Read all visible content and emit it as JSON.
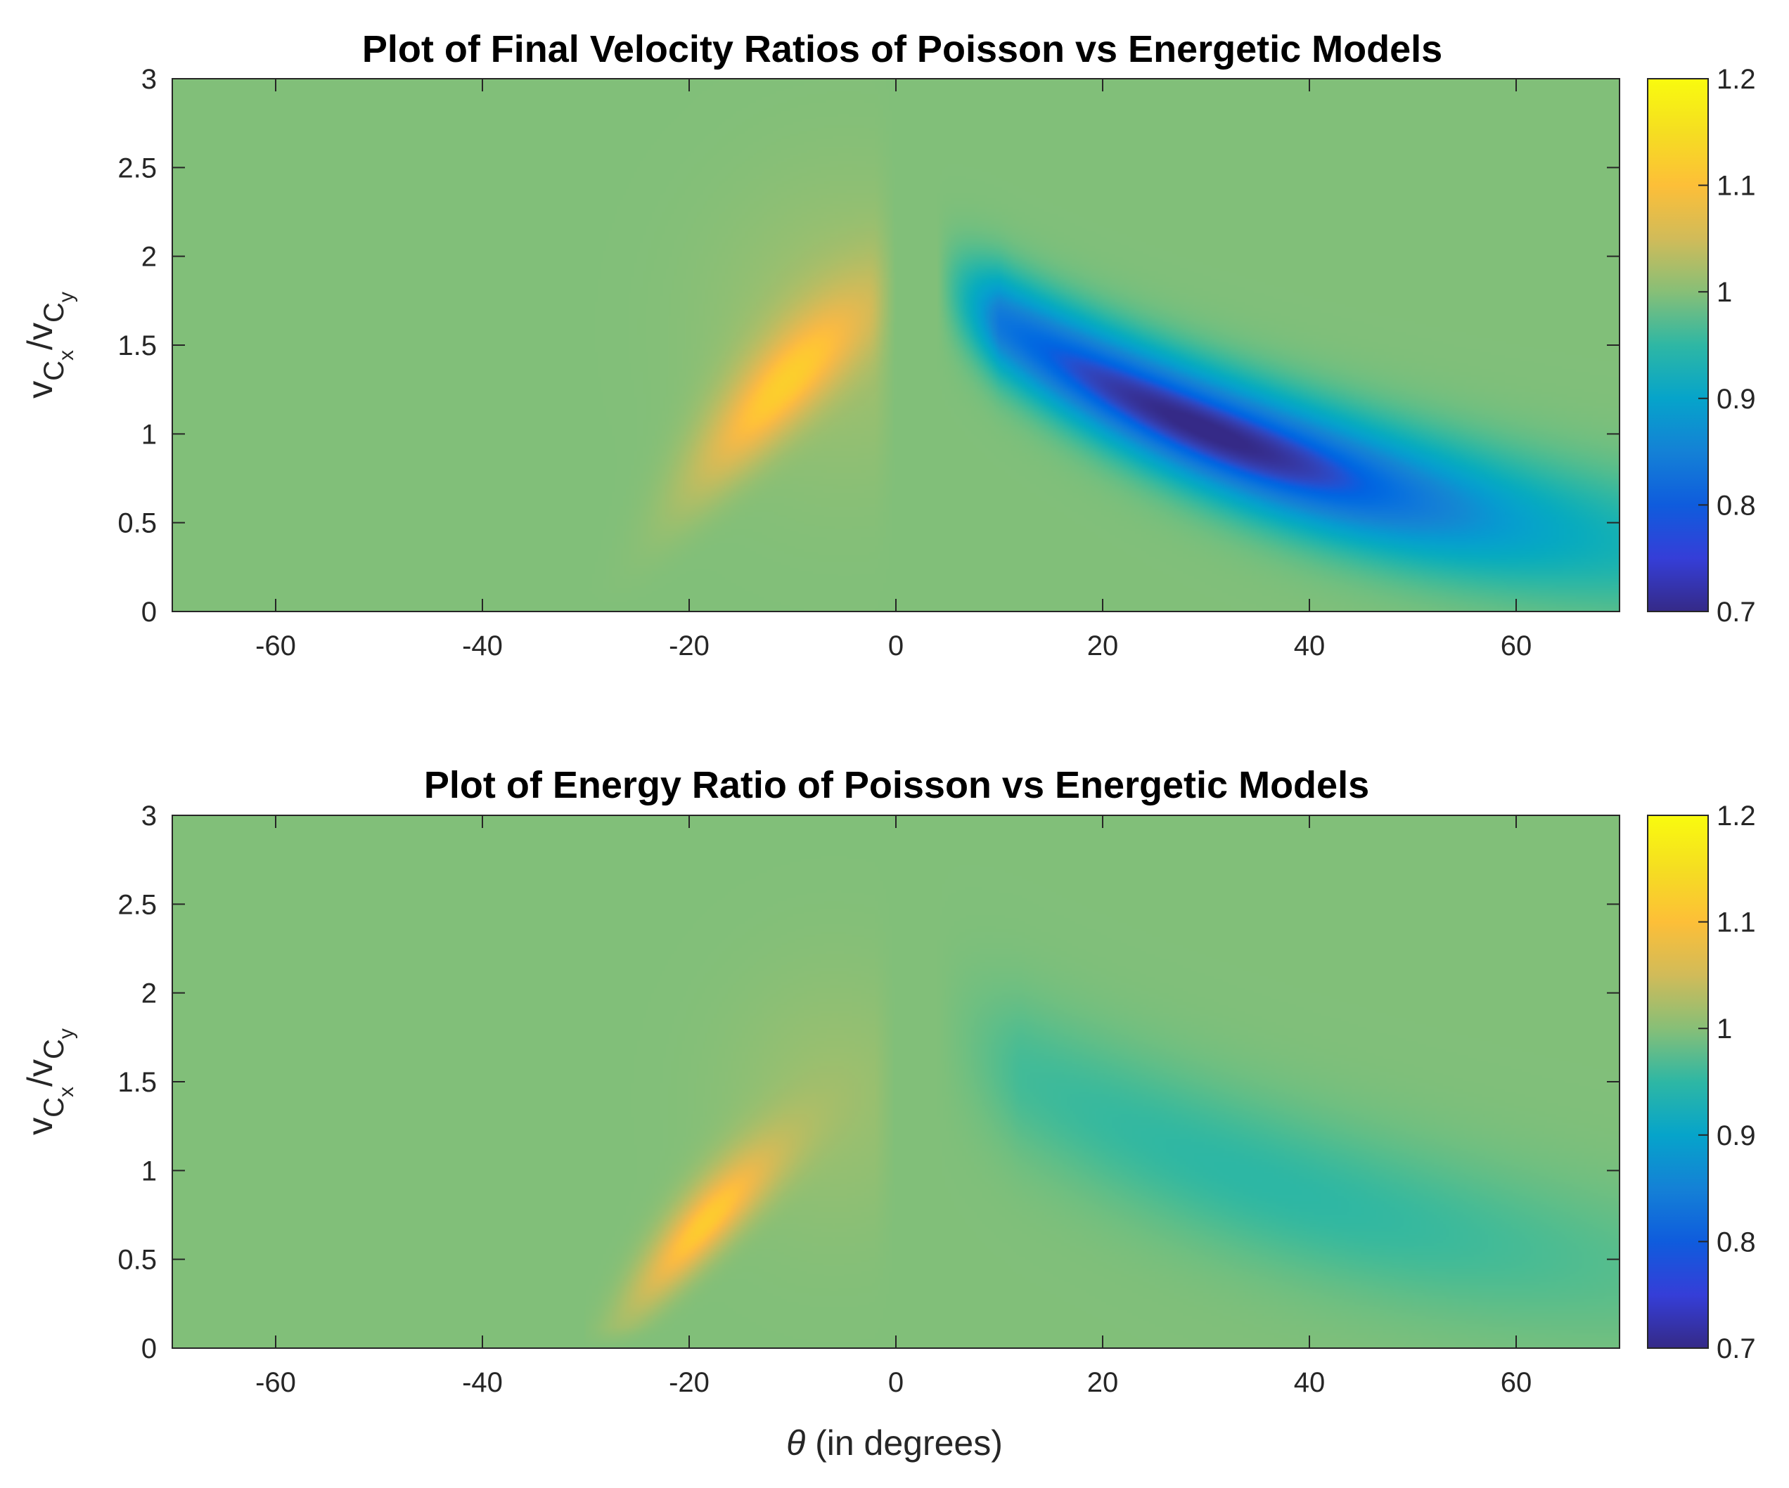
{
  "chart_data": [
    {
      "type": "heatmap",
      "title": "Plot of Final Velocity Ratios of Poisson vs Energetic Models",
      "xlabel": "",
      "ylabel": "v_Cx/v_Cy",
      "xlim": [
        -70,
        70
      ],
      "ylim": [
        0,
        3
      ],
      "xticks": [
        "-60",
        "-40",
        "-20",
        "0",
        "20",
        "40",
        "60"
      ],
      "yticks": [
        "0",
        "0.5",
        "1",
        "1.5",
        "2",
        "2.5",
        "3"
      ],
      "colorbar": {
        "range": [
          0.7,
          1.2
        ],
        "ticks": [
          "0.7",
          "0.8",
          "0.9",
          "1",
          "1.1",
          "1.2"
        ]
      },
      "features": [
        {
          "kind": "peak",
          "theta": -9,
          "ratio": 1.25,
          "value": 1.12,
          "note": "orange lobe rising from theta -28 at 0 toward theta -4 at 1.8"
        },
        {
          "kind": "trough",
          "theta": 30,
          "ratio": 1.15,
          "value": 0.74,
          "note": "blue band from theta 8 at 1.8 down to theta 70 at 0.35"
        }
      ],
      "background_value": 1.0
    },
    {
      "type": "heatmap",
      "title": "Plot of Energy Ratio of Poisson vs Energetic Models",
      "xlabel": "θ (in degrees)",
      "ylabel": "v_Cx/v_Cy",
      "xlim": [
        -70,
        70
      ],
      "ylim": [
        0,
        3
      ],
      "xticks": [
        "-60",
        "-40",
        "-20",
        "0",
        "20",
        "40",
        "60"
      ],
      "yticks": [
        "0",
        "0.5",
        "1",
        "1.5",
        "2",
        "2.5",
        "3"
      ],
      "colorbar": {
        "range": [
          0.7,
          1.2
        ],
        "ticks": [
          "0.7",
          "0.8",
          "0.9",
          "1",
          "1.1",
          "1.2"
        ]
      },
      "features": [
        {
          "kind": "peak",
          "theta": -16,
          "ratio": 0.7,
          "value": 1.13,
          "note": "orange lobe rising from theta -28 at 0 toward theta -5 at 1.7"
        },
        {
          "kind": "trough",
          "theta": 35,
          "ratio": 0.95,
          "value": 0.95,
          "note": "faint teal band from theta 10 at 1.6 down to theta 70 at 0.3"
        }
      ],
      "background_value": 1.0
    }
  ],
  "labels": {
    "ylabel_main": "v",
    "ylabel_c": "C",
    "ylabel_x": "x",
    "ylabel_slash": "/v",
    "ylabel_y": "y",
    "xlabel_theta": "θ",
    "xlabel_rest": " (in degrees)"
  },
  "colors": {
    "axis": "#262626",
    "colormap": "parula"
  }
}
